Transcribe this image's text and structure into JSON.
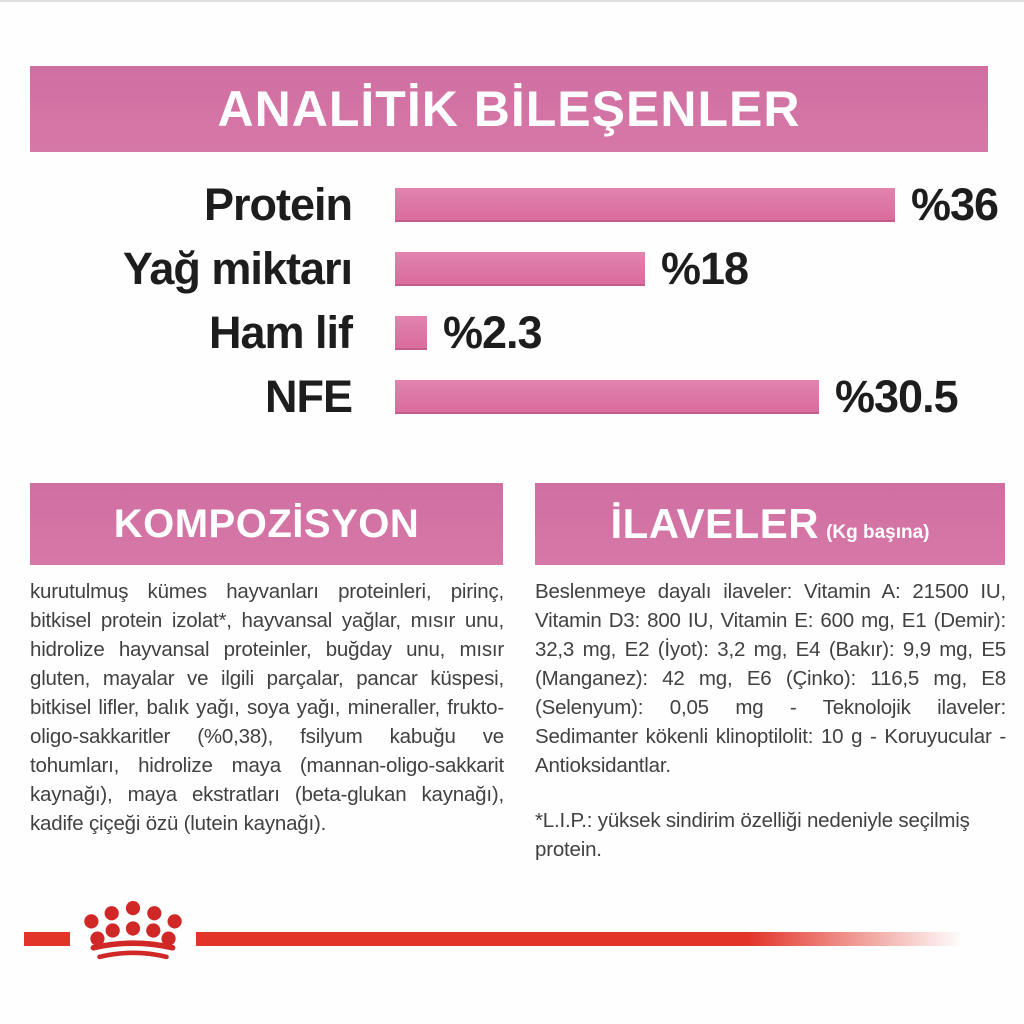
{
  "colors": {
    "header_pink": "#d06fa2",
    "bar_pink": "#dc74a4",
    "brand_red": "#e23428",
    "crown_red": "#d02827",
    "label_black": "#1d1d1d",
    "body_gray": "#414141"
  },
  "analitik": {
    "title": "ANALİTİK BİLEŞENLER"
  },
  "chart_data": {
    "type": "bar",
    "orientation": "horizontal",
    "title": "ANALİTİK BİLEŞENLER",
    "categories": [
      "Protein",
      "Yağ miktarı",
      "Ham lif",
      "NFE"
    ],
    "values": [
      36,
      18,
      2.3,
      30.5
    ],
    "value_labels": [
      "%36",
      "%18",
      "%2.3",
      "%30.5"
    ],
    "unit": "percent",
    "xlim": [
      0,
      40
    ],
    "grid": false,
    "legend": false,
    "bar_color": "#dc74a4"
  },
  "kompozisyon": {
    "title": "KOMPOZİSYON",
    "body": "kurutulmuş kümes hayvanları proteinleri, pirinç, bitkisel protein izolat*, hayvansal yağlar, mısır unu, hidrolize hayvansal proteinler, buğday unu, mısır gluten, mayalar ve ilgili parçalar, pancar küspesi, bitkisel lifler, balık yağı, soya yağı, mineraller, frukto-oligo-sakkaritler (%0,38), fsilyum kabuğu ve tohumları, hidrolize maya (mannan-oligo-sakkarit kaynağı), maya ekstratları (beta-glukan kaynağı), kadife çiçeği özü (lutein kaynağı)."
  },
  "ilaveler": {
    "title": "İLAVELER",
    "subtitle": "(Kg başına)",
    "body": "Beslenmeye dayalı ilaveler: Vitamin A: 21500 IU, Vitamin D3: 800 IU, Vitamin E: 600 mg, E1 (Demir): 32,3 mg, E2 (İyot): 3,2 mg, E4 (Bakır): 9,9 mg, E5 (Manganez): 42 mg, E6 (Çinko): 116,5 mg, E8 (Selenyum): 0,05 mg - Teknolojik ilaveler: Sedimanter kökenli klinoptilolit: 10 g - Koruyucular - Antioksidantlar.",
    "footnote": "*L.I.P.: yüksek sindirim özelliği nedeniyle seçilmiş protein."
  },
  "footer": {
    "logo_icon": "royal-canin-crown-icon"
  }
}
